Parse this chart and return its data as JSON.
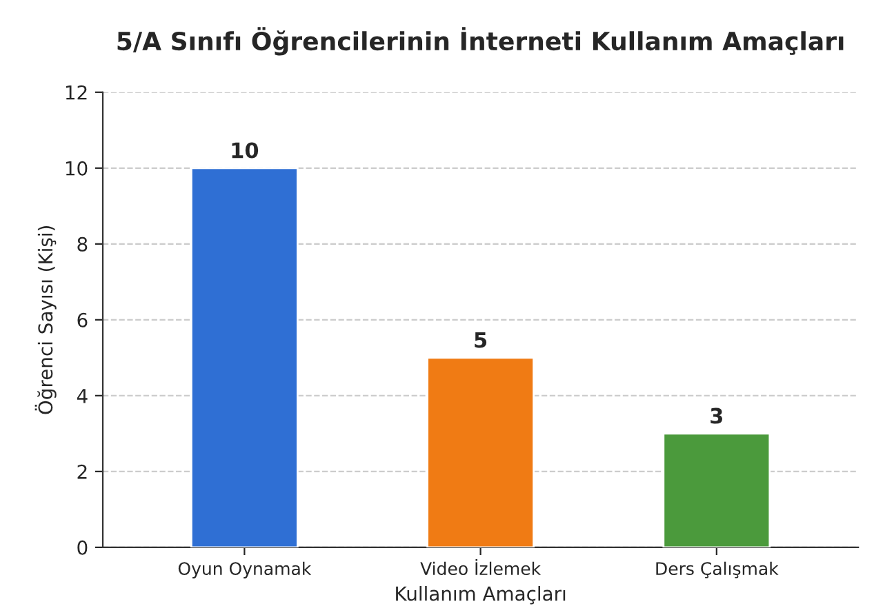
{
  "chart_data": {
    "type": "bar",
    "title": "5/A Sınıfı Öğrencilerinin İnterneti Kullanım Amaçları",
    "xlabel": "Kullanım Amaçları",
    "ylabel": "Öğrenci Sayısı (Kişi)",
    "categories": [
      "Oyun Oynamak",
      "Video İzlemek",
      "Ders Çalışmak"
    ],
    "values": [
      10,
      5,
      3
    ],
    "colors": [
      "#2f6fd4",
      "#f07b14",
      "#4b9a3c"
    ],
    "ylim": [
      0,
      12
    ],
    "yticks": [
      0,
      2,
      4,
      6,
      8,
      10,
      12
    ],
    "grid": "y",
    "data_labels": true,
    "legend": false
  }
}
